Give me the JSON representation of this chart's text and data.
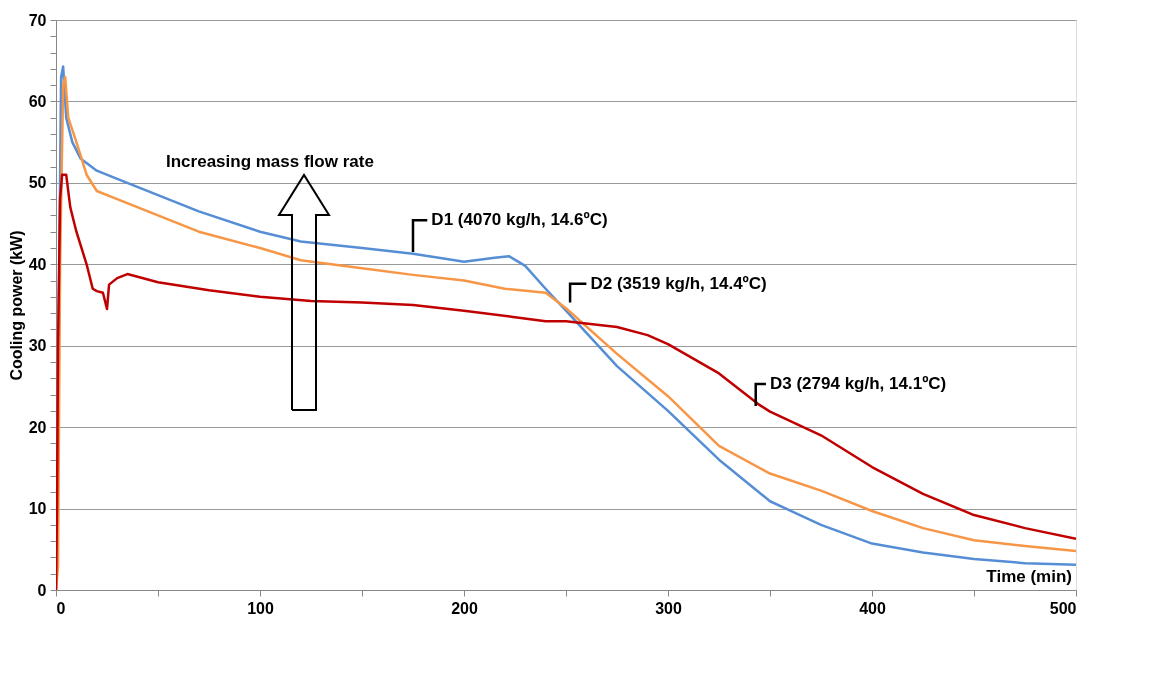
{
  "chart_data": {
    "type": "line",
    "xlabel": "Time (min)",
    "ylabel": "Cooling power (kW)",
    "xlim": [
      0,
      500
    ],
    "ylim": [
      0,
      70
    ],
    "xticks": [
      0,
      {
        "value": 50,
        "label": null
      },
      100,
      {
        "value": 150,
        "label": null
      },
      200,
      {
        "value": 250,
        "label": null
      },
      300,
      {
        "value": 350,
        "label": null
      },
      400,
      {
        "value": 450,
        "label": null
      },
      500
    ],
    "yticks": [
      0,
      {
        "value": 2,
        "label": null
      },
      {
        "value": 4,
        "label": null
      },
      {
        "value": 6,
        "label": null
      },
      {
        "value": 8,
        "label": null
      },
      10,
      {
        "value": 12,
        "label": null
      },
      {
        "value": 14,
        "label": null
      },
      {
        "value": 16,
        "label": null
      },
      {
        "value": 18,
        "label": null
      },
      20,
      {
        "value": 22,
        "label": null
      },
      {
        "value": 24,
        "label": null
      },
      {
        "value": 26,
        "label": null
      },
      {
        "value": 28,
        "label": null
      },
      30,
      {
        "value": 32,
        "label": null
      },
      {
        "value": 34,
        "label": null
      },
      {
        "value": 36,
        "label": null
      },
      {
        "value": 38,
        "label": null
      },
      40,
      {
        "value": 42,
        "label": null
      },
      {
        "value": 44,
        "label": null
      },
      {
        "value": 46,
        "label": null
      },
      {
        "value": 48,
        "label": null
      },
      50,
      {
        "value": 52,
        "label": null
      },
      {
        "value": 54,
        "label": null
      },
      {
        "value": 56,
        "label": null
      },
      {
        "value": 58,
        "label": null
      },
      60,
      {
        "value": 62,
        "label": null
      },
      {
        "value": 64,
        "label": null
      },
      {
        "value": 66,
        "label": null
      },
      {
        "value": 68,
        "label": null
      },
      70
    ],
    "grid": "y",
    "legend": false,
    "marker": "none",
    "line_style": "solid",
    "annotations": [
      "Increasing mass flow rate"
    ],
    "series": [
      {
        "name": "D1 (4070 kg/h, 14.6ºC)",
        "color": "#558ed5",
        "x": [
          0,
          2.5,
          3.5,
          5,
          8,
          12,
          20,
          30,
          50,
          70,
          100,
          120,
          150,
          175,
          190,
          200,
          215,
          222,
          230,
          240,
          250,
          275,
          300,
          325,
          350,
          375,
          400,
          425,
          450,
          475,
          500
        ],
        "values": [
          0,
          63,
          64.3,
          58,
          55,
          53,
          51.5,
          50.5,
          48.5,
          46.5,
          44,
          42.8,
          42,
          41.3,
          40.7,
          40.3,
          40.8,
          41,
          39.8,
          37,
          34.3,
          27.5,
          22,
          16,
          10.9,
          8,
          5.7,
          4.6,
          3.8,
          3.3,
          3.1
        ]
      },
      {
        "name": "D2 (3519 kg/h, 14.4ºC)",
        "color": "#f79646",
        "x": [
          0,
          1,
          2,
          3.5,
          4.5,
          6,
          10,
          15,
          20,
          30,
          50,
          70,
          100,
          120,
          150,
          175,
          200,
          220,
          240,
          250,
          275,
          300,
          325,
          350,
          375,
          400,
          425,
          450,
          475,
          500
        ],
        "values": [
          0,
          3,
          40,
          62,
          63,
          58,
          55,
          51,
          49,
          48,
          46,
          44,
          42,
          40.5,
          39.5,
          38.7,
          38,
          37,
          36.5,
          34.6,
          29,
          23.8,
          17.7,
          14.3,
          12.2,
          9.7,
          7.6,
          6.1,
          5.4,
          4.8
        ]
      },
      {
        "name": "D3 (2794 kg/h, 14.1ºC)",
        "color": "#c00000",
        "x": [
          0,
          0.5,
          1,
          2,
          3,
          5,
          7,
          10,
          15,
          18,
          20,
          23,
          25,
          26,
          30,
          35,
          50,
          75,
          100,
          125,
          150,
          175,
          200,
          225,
          240,
          250,
          275,
          290,
          300,
          325,
          345,
          350,
          375,
          400,
          425,
          450,
          475,
          500
        ],
        "values": [
          0,
          10,
          30,
          48,
          51,
          51,
          47,
          44,
          40,
          37,
          36.7,
          36.5,
          34.5,
          37.5,
          38.3,
          38.8,
          37.8,
          36.8,
          36,
          35.5,
          35.3,
          35,
          34.3,
          33.5,
          33,
          33,
          32.3,
          31.3,
          30.2,
          26.6,
          22.7,
          21.9,
          19,
          15.1,
          11.8,
          9.2,
          7.6,
          6.3
        ]
      }
    ]
  }
}
